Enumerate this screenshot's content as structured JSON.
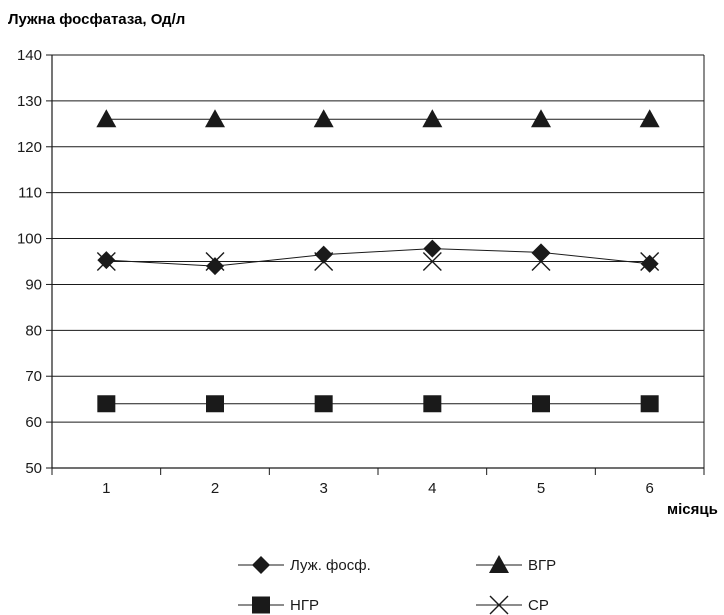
{
  "chart_data": {
    "type": "line",
    "title": "",
    "ylabel": "Лужна фосфатаза, Од/л",
    "xlabel": "місяць",
    "categories": [
      "1",
      "2",
      "3",
      "4",
      "5",
      "6"
    ],
    "ylim": [
      50,
      140
    ],
    "yticks": [
      50,
      60,
      70,
      80,
      90,
      100,
      110,
      120,
      130,
      140
    ],
    "grid": "horizontal",
    "legend": "bottom",
    "series": [
      {
        "name": "Луж. фосф.",
        "marker": "diamond",
        "values": [
          95.3,
          94.0,
          96.5,
          97.8,
          97.0,
          94.5
        ]
      },
      {
        "name": "ВГР",
        "marker": "triangle",
        "values": [
          126,
          126,
          126,
          126,
          126,
          126
        ]
      },
      {
        "name": "НГР",
        "marker": "square",
        "values": [
          64,
          64,
          64,
          64,
          64,
          64
        ]
      },
      {
        "name": "СР",
        "marker": "cross",
        "values": [
          95,
          95,
          95,
          95,
          95,
          95
        ]
      }
    ]
  }
}
